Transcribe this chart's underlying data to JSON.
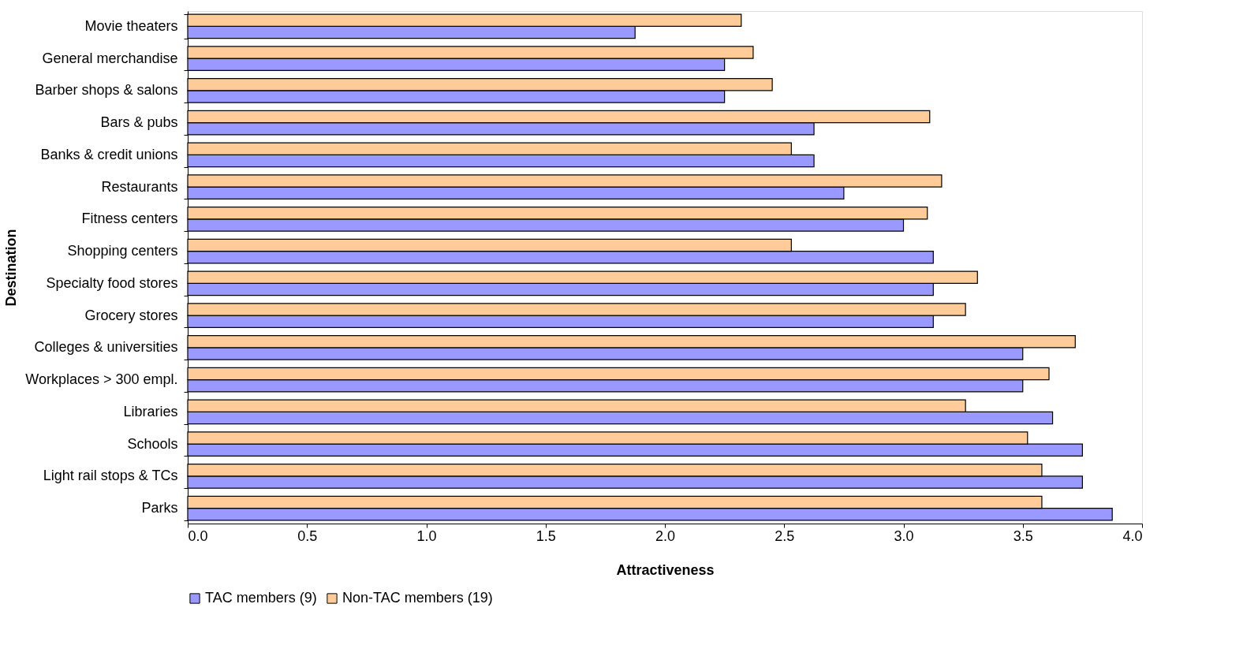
{
  "chart_data": {
    "type": "bar",
    "orientation": "horizontal",
    "xlabel": "Attractiveness",
    "ylabel": "Destination",
    "categories": [
      "Movie theaters",
      "General merchandise",
      "Barber shops & salons",
      "Bars & pubs",
      "Banks & credit unions",
      "Restaurants",
      "Fitness centers",
      "Shopping centers",
      "Specialty food stores",
      "Grocery stores",
      "Colleges & universities",
      "Workplaces > 300 empl.",
      "Libraries",
      "Schools",
      "Light rail stops & TCs",
      "Parks"
    ],
    "series": [
      {
        "name": "TAC members (9)",
        "color": "#9999ff",
        "values": [
          1.875,
          2.25,
          2.25,
          2.625,
          2.625,
          2.75,
          3.0,
          3.125,
          3.125,
          3.125,
          3.5,
          3.5,
          3.625,
          3.75,
          3.75,
          3.875
        ]
      },
      {
        "name": "Non-TAC members (19)",
        "color": "#ffcc99",
        "values": [
          2.32,
          2.37,
          2.45,
          3.11,
          2.53,
          3.16,
          3.1,
          2.53,
          3.31,
          3.26,
          3.72,
          3.61,
          3.26,
          3.52,
          3.58,
          3.58
        ]
      }
    ],
    "xlim": [
      0,
      4
    ],
    "xticks": [
      {
        "value": 0,
        "label": "0.0"
      },
      {
        "value": 0.5,
        "label": "0.5"
      },
      {
        "value": 1,
        "label": "1.0"
      },
      {
        "value": 1.5,
        "label": "1.5"
      },
      {
        "value": 2,
        "label": "2.0"
      },
      {
        "value": 2.5,
        "label": "2.5"
      },
      {
        "value": 3,
        "label": "3.0"
      },
      {
        "value": 3.5,
        "label": "3.5"
      },
      {
        "value": 4,
        "label": "4.0"
      }
    ],
    "grid": false,
    "legend": "bottom"
  }
}
